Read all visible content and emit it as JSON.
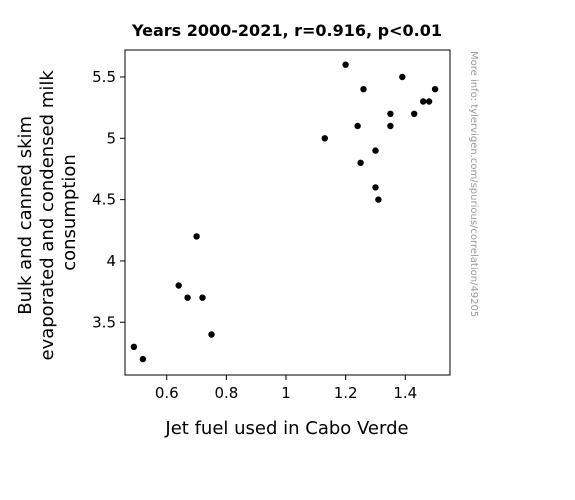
{
  "chart_data": {
    "type": "scatter",
    "title": "Years 2000-2021, r=0.916, p<0.01",
    "xlabel": "Jet fuel used in Cabo Verde",
    "ylabel_lines": [
      "Bulk and canned skim",
      "evaporated and condensed milk",
      "consumption"
    ],
    "xlim": [
      0.46,
      1.55
    ],
    "ylim": [
      3.07,
      5.72
    ],
    "xticks": [
      {
        "value": 0.6,
        "label": "0.6"
      },
      {
        "value": 0.8,
        "label": "0.8"
      },
      {
        "value": 1.0,
        "label": "1"
      },
      {
        "value": 1.2,
        "label": "1.2"
      },
      {
        "value": 1.4,
        "label": "1.4"
      }
    ],
    "yticks": [
      {
        "value": 3.5,
        "label": "3.5"
      },
      {
        "value": 4.0,
        "label": "4"
      },
      {
        "value": 4.5,
        "label": "4.5"
      },
      {
        "value": 5.0,
        "label": "5"
      },
      {
        "value": 5.5,
        "label": "5.5"
      }
    ],
    "grid": false,
    "point_color": "#000000",
    "points": [
      {
        "x": 0.49,
        "y": 3.3
      },
      {
        "x": 0.52,
        "y": 3.2
      },
      {
        "x": 0.64,
        "y": 3.8
      },
      {
        "x": 0.67,
        "y": 3.7
      },
      {
        "x": 0.7,
        "y": 4.2
      },
      {
        "x": 0.72,
        "y": 3.7
      },
      {
        "x": 0.75,
        "y": 3.4
      },
      {
        "x": 1.13,
        "y": 5.0
      },
      {
        "x": 1.2,
        "y": 5.6
      },
      {
        "x": 1.24,
        "y": 5.1
      },
      {
        "x": 1.25,
        "y": 4.8
      },
      {
        "x": 1.26,
        "y": 5.4
      },
      {
        "x": 1.3,
        "y": 4.9
      },
      {
        "x": 1.3,
        "y": 4.6
      },
      {
        "x": 1.31,
        "y": 4.5
      },
      {
        "x": 1.35,
        "y": 5.2
      },
      {
        "x": 1.35,
        "y": 5.1
      },
      {
        "x": 1.39,
        "y": 5.5
      },
      {
        "x": 1.43,
        "y": 5.2
      },
      {
        "x": 1.46,
        "y": 5.3
      },
      {
        "x": 1.48,
        "y": 5.3
      },
      {
        "x": 1.5,
        "y": 5.4
      }
    ]
  },
  "watermark": "More info: tylervigen.com/spurious/correlation/49205"
}
